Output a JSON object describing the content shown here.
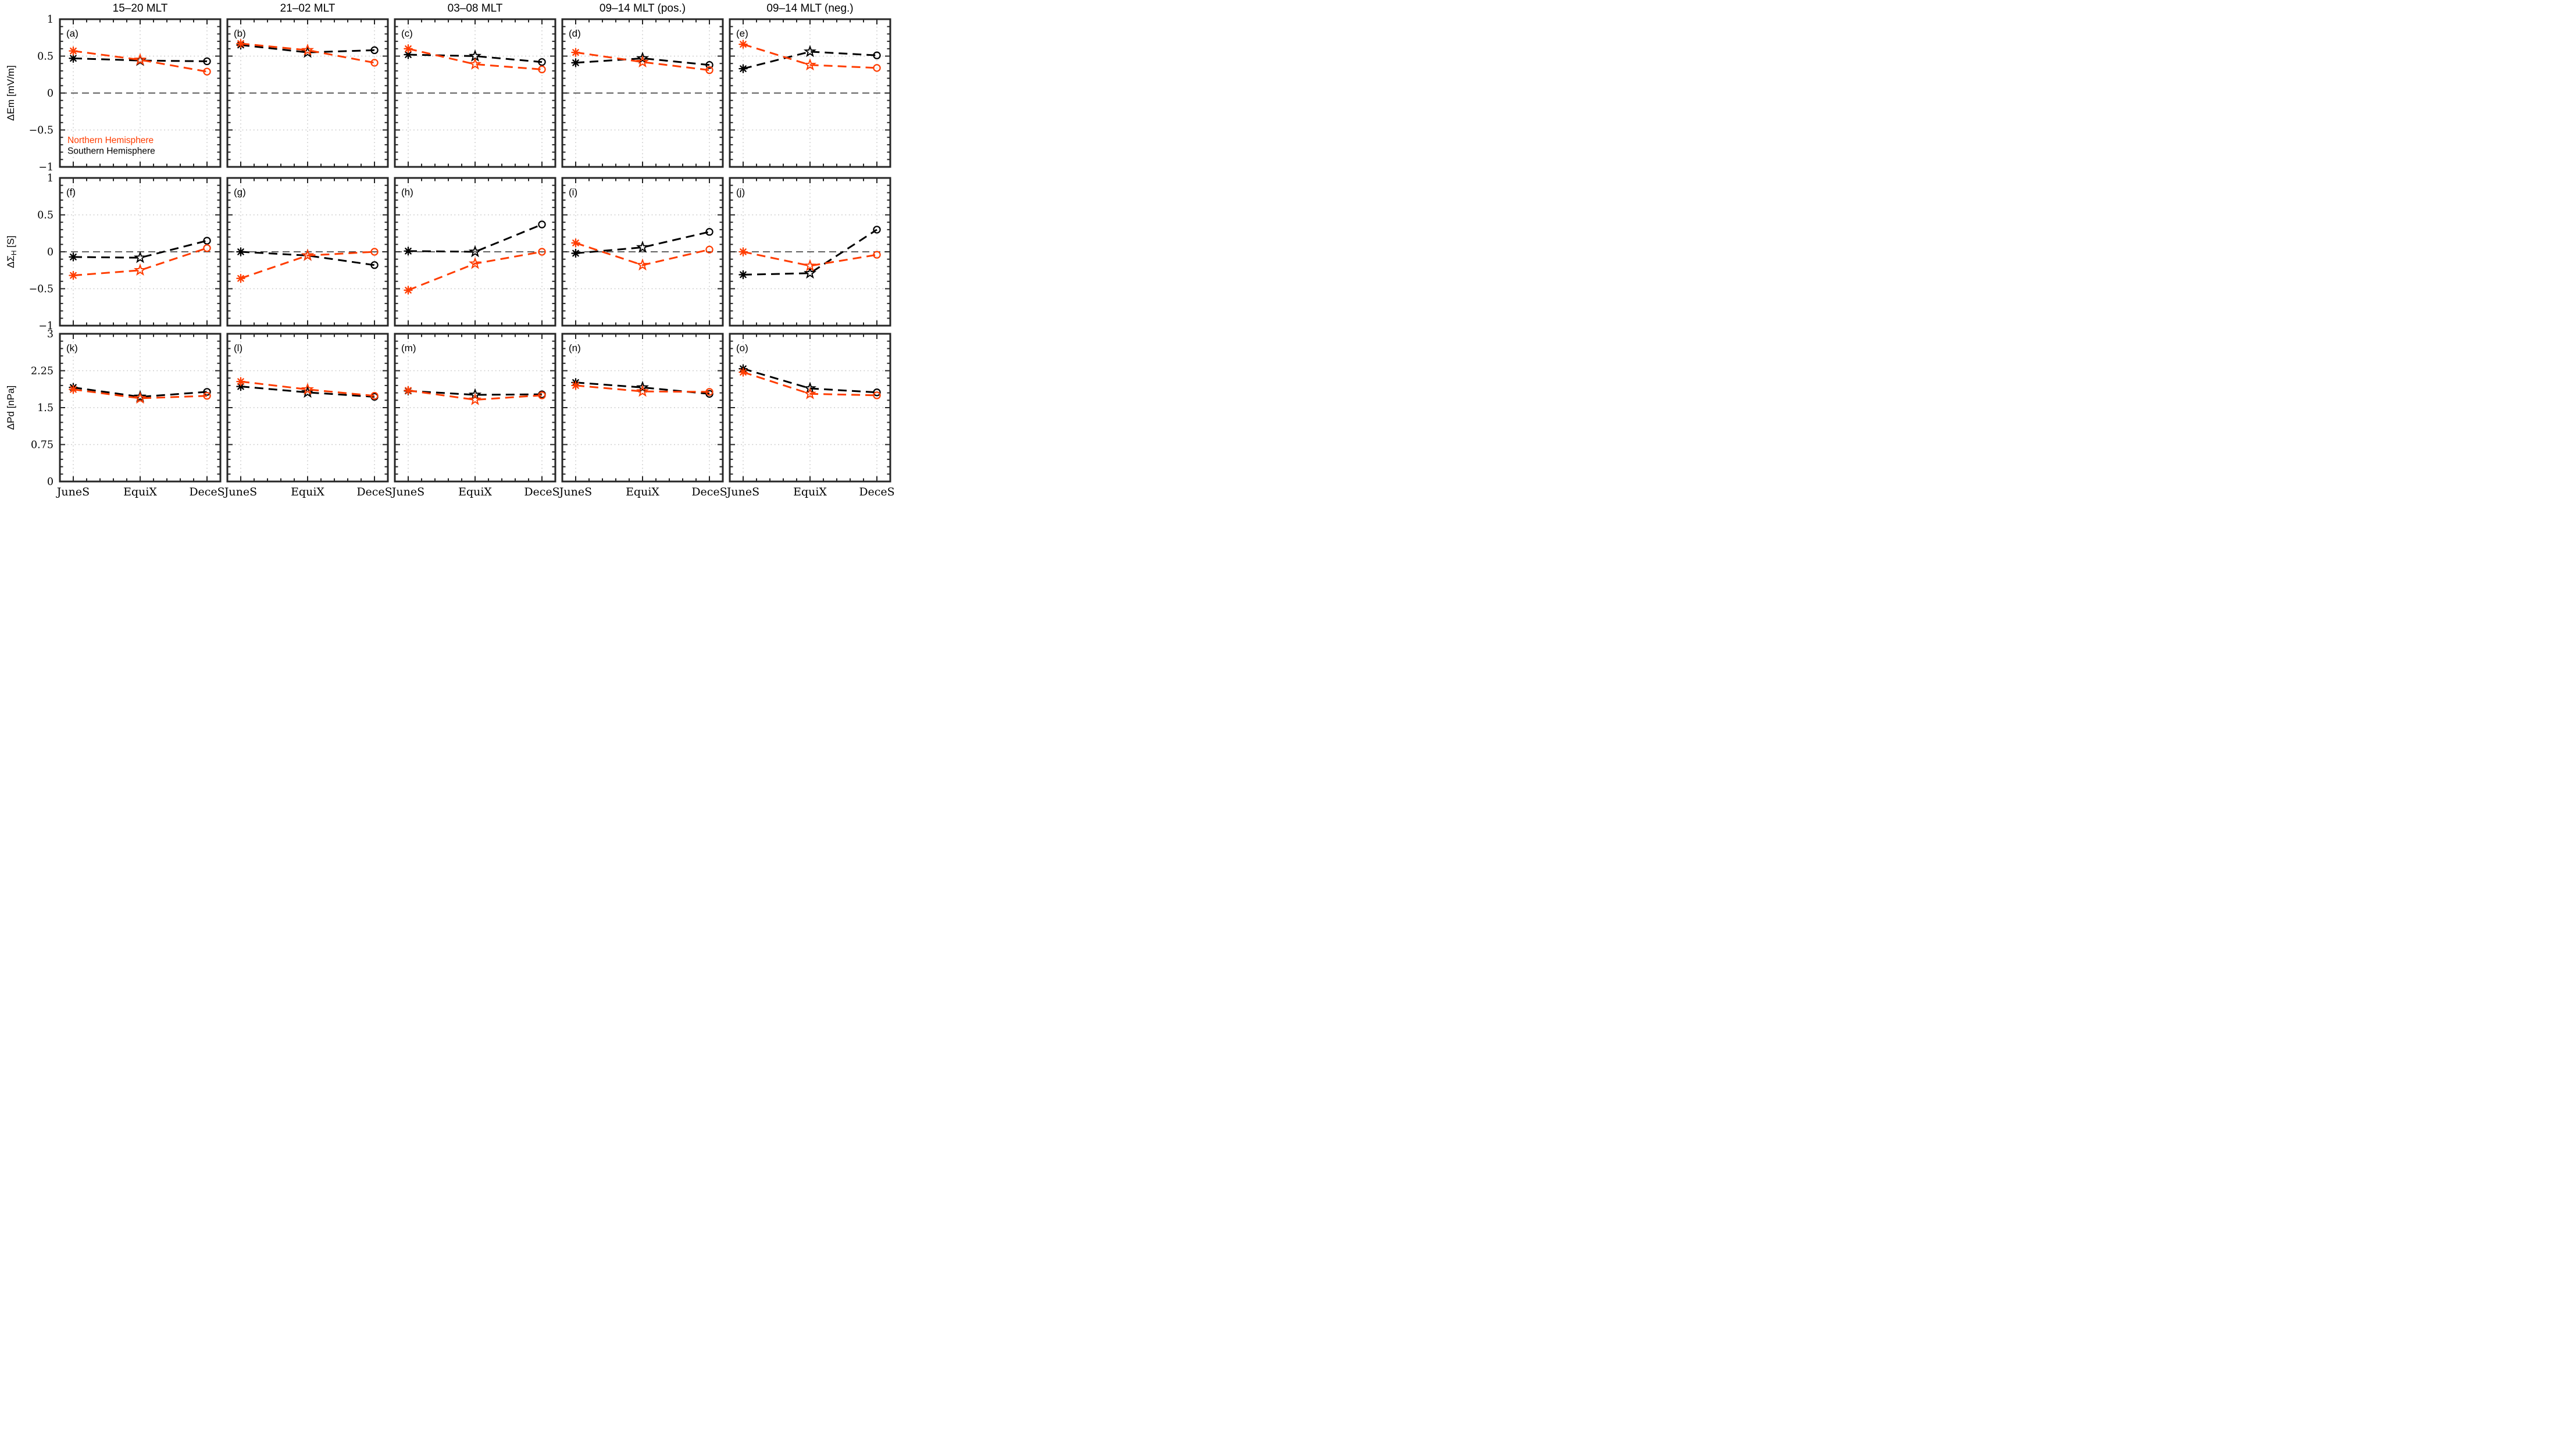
{
  "chart_data": {
    "type": "line",
    "grid": {
      "rows": 3,
      "cols": 5
    },
    "col_titles": [
      "15–20 MLT",
      "21–02 MLT",
      "03–08 MLT",
      "09–14 MLT (pos.)",
      "09–14 MLT (neg.)"
    ],
    "x_categories": [
      "JuneS",
      "EquiX",
      "DeceS"
    ],
    "x_positions": [
      0.0833,
      0.5,
      0.9167
    ],
    "x_minor_divisions": 12,
    "markers_by_x": [
      "asterisk",
      "open-star",
      "open-circle"
    ],
    "line_style": "dashed",
    "grid_style": "dotted",
    "series_colors": {
      "north": "#ff3c00",
      "south": "#000000"
    },
    "legend": {
      "panel": "(a)",
      "items": [
        {
          "label": "Northern Hemisphere",
          "color": "#ff3c00"
        },
        {
          "label": "Southern Hemisphere",
          "color": "#000000"
        }
      ]
    },
    "rows": [
      {
        "ylabel": {
          "main": "ΔEm",
          "sub": "",
          "unit": " [mV/m]"
        },
        "ylim": [
          -1,
          1
        ],
        "yticks": [
          1,
          0.5,
          0,
          -0.5,
          -1
        ],
        "ytick_labels": [
          "1",
          "0.5",
          "0",
          "−0.5",
          "−1"
        ],
        "gridlines": [
          0.5,
          -0.5
        ],
        "zero_line": true,
        "minor_step": 0.1,
        "panels": [
          {
            "label": "(a)",
            "north": [
              0.57,
              0.45,
              0.29
            ],
            "south": [
              0.47,
              0.44,
              0.43
            ]
          },
          {
            "label": "(b)",
            "north": [
              0.67,
              0.58,
              0.41
            ],
            "south": [
              0.65,
              0.55,
              0.58
            ]
          },
          {
            "label": "(c)",
            "north": [
              0.6,
              0.39,
              0.32
            ],
            "south": [
              0.52,
              0.5,
              0.42
            ]
          },
          {
            "label": "(d)",
            "north": [
              0.55,
              0.42,
              0.31
            ],
            "south": [
              0.41,
              0.47,
              0.38
            ]
          },
          {
            "label": "(e)",
            "north": [
              0.66,
              0.38,
              0.34
            ],
            "south": [
              0.33,
              0.56,
              0.51
            ]
          }
        ]
      },
      {
        "ylabel": {
          "main": "ΔΣ",
          "sub": "H",
          "unit": " [S]"
        },
        "ylim": [
          -1,
          1
        ],
        "yticks": [
          1,
          0.5,
          0,
          -0.5,
          -1
        ],
        "ytick_labels": [
          "1",
          "0.5",
          "0",
          "−0.5",
          "−1"
        ],
        "gridlines": [
          0.5,
          -0.5
        ],
        "zero_line": true,
        "minor_step": 0.1,
        "panels": [
          {
            "label": "(f)",
            "north": [
              -0.32,
              -0.25,
              0.05
            ],
            "south": [
              -0.07,
              -0.08,
              0.15
            ]
          },
          {
            "label": "(g)",
            "north": [
              -0.36,
              -0.05,
              0.0
            ],
            "south": [
              0.0,
              -0.05,
              -0.18
            ]
          },
          {
            "label": "(h)",
            "north": [
              -0.52,
              -0.16,
              0.0
            ],
            "south": [
              0.01,
              0.0,
              0.37
            ]
          },
          {
            "label": "(i)",
            "north": [
              0.12,
              -0.18,
              0.03
            ],
            "south": [
              -0.02,
              0.06,
              0.27
            ]
          },
          {
            "label": "(j)",
            "north": [
              0.0,
              -0.19,
              -0.04
            ],
            "south": [
              -0.31,
              -0.29,
              0.3
            ]
          }
        ]
      },
      {
        "ylabel": {
          "main": "ΔPd",
          "sub": "",
          "unit": " [nPa]"
        },
        "ylim": [
          0,
          3
        ],
        "yticks": [
          3,
          2.25,
          1.5,
          0.75,
          0
        ],
        "ytick_labels": [
          "3",
          "2.25",
          "1.5",
          "0.75",
          "0"
        ],
        "gridlines": [
          2.25,
          1.5,
          0.75
        ],
        "zero_line": false,
        "minor_step": 0.15,
        "panels": [
          {
            "label": "(k)",
            "north": [
              1.87,
              1.69,
              1.74
            ],
            "south": [
              1.91,
              1.72,
              1.82
            ]
          },
          {
            "label": "(l)",
            "north": [
              2.03,
              1.87,
              1.74
            ],
            "south": [
              1.93,
              1.81,
              1.72
            ]
          },
          {
            "label": "(m)",
            "north": [
              1.85,
              1.66,
              1.75
            ],
            "south": [
              1.84,
              1.76,
              1.77
            ]
          },
          {
            "label": "(n)",
            "north": [
              1.95,
              1.83,
              1.82
            ],
            "south": [
              2.01,
              1.91,
              1.78
            ]
          },
          {
            "label": "(o)",
            "north": [
              2.22,
              1.78,
              1.75
            ],
            "south": [
              2.29,
              1.89,
              1.81
            ]
          }
        ]
      }
    ]
  }
}
